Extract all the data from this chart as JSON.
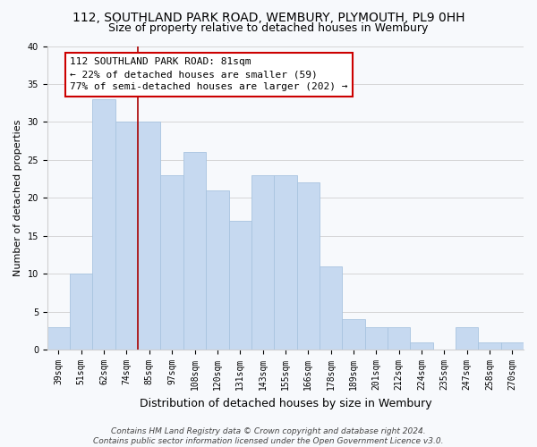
{
  "title": "112, SOUTHLAND PARK ROAD, WEMBURY, PLYMOUTH, PL9 0HH",
  "subtitle": "Size of property relative to detached houses in Wembury",
  "xlabel": "Distribution of detached houses by size in Wembury",
  "ylabel": "Number of detached properties",
  "categories": [
    "39sqm",
    "51sqm",
    "62sqm",
    "74sqm",
    "85sqm",
    "97sqm",
    "108sqm",
    "120sqm",
    "131sqm",
    "143sqm",
    "155sqm",
    "166sqm",
    "178sqm",
    "189sqm",
    "201sqm",
    "212sqm",
    "224sqm",
    "235sqm",
    "247sqm",
    "258sqm",
    "270sqm"
  ],
  "values": [
    3,
    10,
    33,
    30,
    30,
    23,
    26,
    21,
    17,
    23,
    23,
    22,
    11,
    4,
    3,
    3,
    1,
    0,
    3,
    1,
    1
  ],
  "bar_color": "#c6d9f0",
  "bar_edge_color": "#a8c4e0",
  "marker_line_index": 3.5,
  "marker_line_color": "#aa0000",
  "annotation_line1": "112 SOUTHLAND PARK ROAD: 81sqm",
  "annotation_line2": "← 22% of detached houses are smaller (59)",
  "annotation_line3": "77% of semi-detached houses are larger (202) →",
  "annotation_box_color": "#ffffff",
  "annotation_box_edge": "#cc0000",
  "ylim": [
    0,
    40
  ],
  "yticks": [
    0,
    5,
    10,
    15,
    20,
    25,
    30,
    35,
    40
  ],
  "grid_color": "#d0d0d0",
  "plot_bg_color": "#f7f9fc",
  "fig_bg_color": "#f7f9fc",
  "footer_line1": "Contains HM Land Registry data © Crown copyright and database right 2024.",
  "footer_line2": "Contains public sector information licensed under the Open Government Licence v3.0.",
  "title_fontsize": 10,
  "subtitle_fontsize": 9,
  "xlabel_fontsize": 9,
  "ylabel_fontsize": 8,
  "tick_fontsize": 7,
  "annotation_fontsize": 8,
  "footer_fontsize": 6.5
}
